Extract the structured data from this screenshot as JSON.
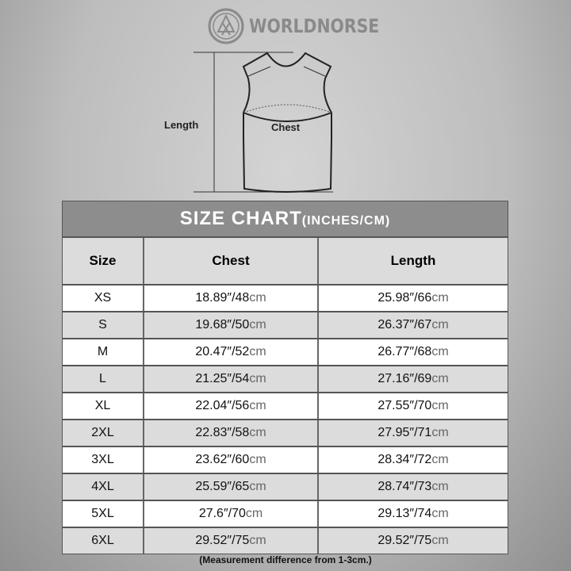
{
  "brand": "WORLDNORSE",
  "diagram": {
    "length_label": "Length",
    "chest_label": "Chest"
  },
  "table": {
    "title": "SIZE CHART",
    "title_units": "(INCHES/CM)",
    "headers": [
      "Size",
      "Chest",
      "Length"
    ],
    "unit_suffix": "cm",
    "rows": [
      {
        "size": "XS",
        "chest": "18.89″/48",
        "length": "25.98″/66"
      },
      {
        "size": "S",
        "chest": "19.68″/50",
        "length": "26.37″/67"
      },
      {
        "size": "M",
        "chest": "20.47″/52",
        "length": "26.77″/68"
      },
      {
        "size": "L",
        "chest": "21.25″/54",
        "length": "27.16″/69"
      },
      {
        "size": "XL",
        "chest": "22.04″/56",
        "length": "27.55″/70"
      },
      {
        "size": "2XL",
        "chest": "22.83″/58",
        "length": "27.95″/71"
      },
      {
        "size": "3XL",
        "chest": "23.62″/60",
        "length": "28.34″/72"
      },
      {
        "size": "4XL",
        "chest": "25.59″/65",
        "length": "28.74″/73"
      },
      {
        "size": "5XL",
        "chest": "27.6″/70",
        "length": "29.13″/74"
      },
      {
        "size": "6XL",
        "chest": "29.52″/75",
        "length": "29.52″/75"
      }
    ]
  },
  "note": "(Measurement difference from 1-3cm.)"
}
